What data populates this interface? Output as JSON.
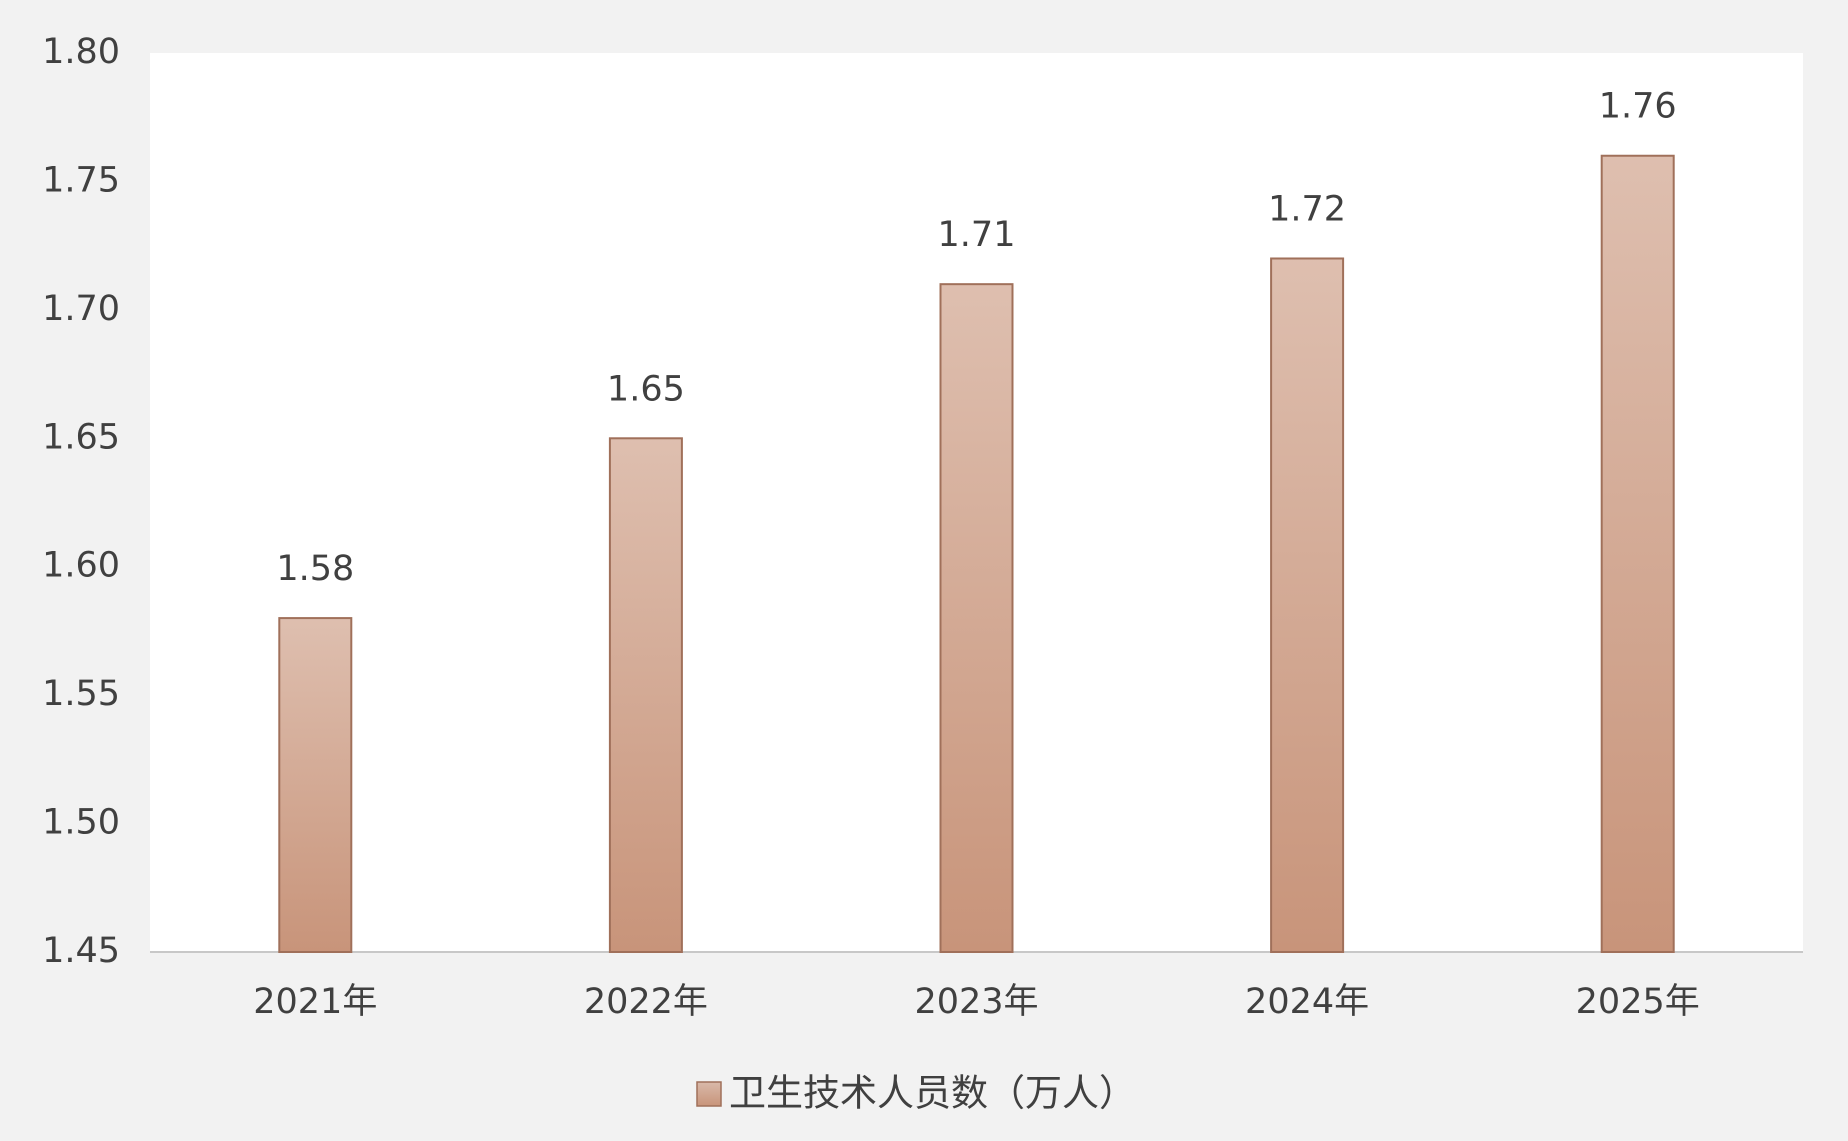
{
  "chart_data": {
    "type": "bar",
    "categories": [
      "2021年",
      "2022年",
      "2023年",
      "2024年",
      "2025年"
    ],
    "series": [
      {
        "name": "卫生技术人员数（万人）",
        "color": "#c8947a",
        "values": [
          1.58,
          1.65,
          1.71,
          1.72,
          1.76
        ]
      }
    ],
    "ylim": [
      1.45,
      1.8
    ],
    "yticks": [
      1.45,
      {
        "value": 1.5,
        "label": "1.50"
      },
      1.55,
      {
        "value": 1.6,
        "label": "1.60"
      },
      1.65,
      {
        "value": 1.7,
        "label": "1.70"
      },
      1.75,
      {
        "value": 1.8,
        "label": "1.80"
      }
    ],
    "grid": false,
    "legend": "bottom"
  }
}
